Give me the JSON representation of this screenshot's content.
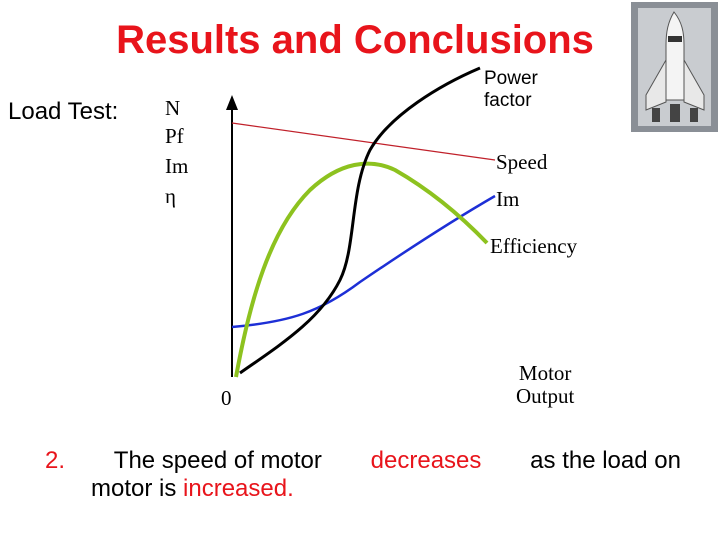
{
  "header": {
    "title": "Results and Conclusions"
  },
  "load_test_label": "Load Test:",
  "axis_quantities": [
    "N",
    "Pf",
    "Im",
    "η"
  ],
  "curve_labels": {
    "power_factor": [
      "Power",
      "factor"
    ],
    "speed": "Speed",
    "current": "Im",
    "efficiency": "Efficiency"
  },
  "origin_label": "0",
  "x_axis_label": [
    "Motor",
    "Output"
  ],
  "conclusion": {
    "number": "2.",
    "part1": "The speed of motor",
    "highlight1": "decreases",
    "part2": "as the load on",
    "part3": "motor is",
    "highlight2": "increased."
  }
}
